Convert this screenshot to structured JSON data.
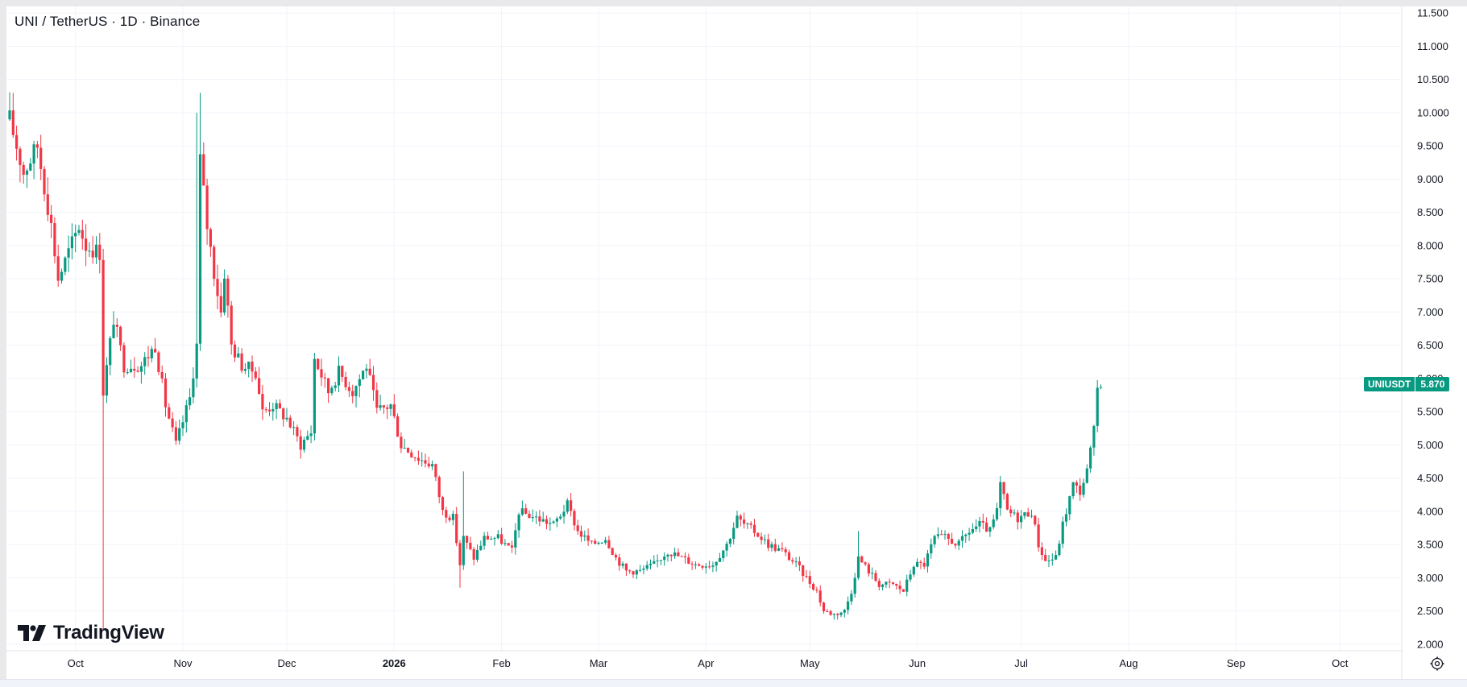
{
  "header": {
    "symbol_title": "UNI / TetherUS · 1D · Binance"
  },
  "branding": {
    "logo_text": "TradingView"
  },
  "price_label": {
    "symbol": "UNIUSDT",
    "value": "5.870"
  },
  "colors": {
    "up": "#089981",
    "down": "#f23645",
    "grid": "#f0f3fa",
    "text": "#131722"
  },
  "icons": {
    "settings": "gear-icon",
    "logo": "tradingview-logo-icon"
  },
  "chart_data": {
    "type": "candlestick",
    "y_ticks": [
      "11.500",
      "11.000",
      "10.500",
      "10.000",
      "9.500",
      "9.000",
      "8.500",
      "8.000",
      "7.500",
      "7.000",
      "6.500",
      "6.000",
      "5.500",
      "5.000",
      "4.500",
      "4.000",
      "3.500",
      "3.000",
      "2.500",
      "2.000"
    ],
    "x_ticks": [
      "Oct",
      "Nov",
      "Dec",
      "2026",
      "Feb",
      "Mar",
      "Apr",
      "May",
      "Jun",
      "Jul",
      "Aug",
      "Sep",
      "Oct"
    ],
    "ylim": [
      1.9,
      11.6
    ],
    "grid": true,
    "anchors": [
      {
        "day": 0,
        "p": 9.9
      },
      {
        "day": 4,
        "p": 9.1
      },
      {
        "day": 8,
        "p": 9.5
      },
      {
        "day": 12,
        "p": 8.3
      },
      {
        "day": 14,
        "p": 7.5
      },
      {
        "day": 20,
        "p": 8.3
      },
      {
        "day": 22,
        "p": 8.0
      },
      {
        "day": 26,
        "p": 7.9
      },
      {
        "day": 27,
        "p": 5.8
      },
      {
        "day": 30,
        "p": 6.9
      },
      {
        "day": 33,
        "p": 6.2
      },
      {
        "day": 38,
        "p": 6.2
      },
      {
        "day": 42,
        "p": 6.5
      },
      {
        "day": 45,
        "p": 5.6
      },
      {
        "day": 48,
        "p": 5.0
      },
      {
        "day": 52,
        "p": 5.7
      },
      {
        "day": 54,
        "p": 6.5
      },
      {
        "day": 55,
        "p": 9.3
      },
      {
        "day": 57,
        "p": 8.3
      },
      {
        "day": 59,
        "p": 7.6
      },
      {
        "day": 61,
        "p": 7.0
      },
      {
        "day": 62,
        "p": 7.6
      },
      {
        "day": 64,
        "p": 6.5
      },
      {
        "day": 67,
        "p": 6.2
      },
      {
        "day": 71,
        "p": 6.1
      },
      {
        "day": 73,
        "p": 5.5
      },
      {
        "day": 76,
        "p": 5.6
      },
      {
        "day": 80,
        "p": 5.4
      },
      {
        "day": 84,
        "p": 5.0
      },
      {
        "day": 87,
        "p": 5.2
      },
      {
        "day": 88,
        "p": 6.3
      },
      {
        "day": 92,
        "p": 5.8
      },
      {
        "day": 95,
        "p": 6.1
      },
      {
        "day": 99,
        "p": 5.8
      },
      {
        "day": 103,
        "p": 6.2
      },
      {
        "day": 106,
        "p": 5.5
      },
      {
        "day": 110,
        "p": 5.6
      },
      {
        "day": 113,
        "p": 5.0
      },
      {
        "day": 118,
        "p": 4.8
      },
      {
        "day": 122,
        "p": 4.7
      },
      {
        "day": 125,
        "p": 4.0
      },
      {
        "day": 128,
        "p": 3.9
      },
      {
        "day": 130,
        "p": 3.2
      },
      {
        "day": 131,
        "p": 3.6
      },
      {
        "day": 134,
        "p": 3.3
      },
      {
        "day": 137,
        "p": 3.6
      },
      {
        "day": 141,
        "p": 3.6
      },
      {
        "day": 145,
        "p": 3.4
      },
      {
        "day": 147,
        "p": 4.0
      },
      {
        "day": 152,
        "p": 3.9
      },
      {
        "day": 157,
        "p": 3.8
      },
      {
        "day": 161,
        "p": 4.1
      },
      {
        "day": 164,
        "p": 3.7
      },
      {
        "day": 168,
        "p": 3.5
      },
      {
        "day": 172,
        "p": 3.6
      },
      {
        "day": 175,
        "p": 3.3
      },
      {
        "day": 178,
        "p": 3.1
      },
      {
        "day": 182,
        "p": 3.1
      },
      {
        "day": 186,
        "p": 3.2
      },
      {
        "day": 190,
        "p": 3.4
      },
      {
        "day": 194,
        "p": 3.3
      },
      {
        "day": 198,
        "p": 3.2
      },
      {
        "day": 203,
        "p": 3.2
      },
      {
        "day": 207,
        "p": 3.5
      },
      {
        "day": 210,
        "p": 3.9
      },
      {
        "day": 212,
        "p": 3.8
      },
      {
        "day": 215,
        "p": 3.7
      },
      {
        "day": 219,
        "p": 3.5
      },
      {
        "day": 223,
        "p": 3.4
      },
      {
        "day": 227,
        "p": 3.2
      },
      {
        "day": 230,
        "p": 3.0
      },
      {
        "day": 233,
        "p": 2.8
      },
      {
        "day": 235,
        "p": 2.5
      },
      {
        "day": 238,
        "p": 2.45
      },
      {
        "day": 241,
        "p": 2.5
      },
      {
        "day": 243,
        "p": 2.8
      },
      {
        "day": 245,
        "p": 3.3
      },
      {
        "day": 248,
        "p": 3.1
      },
      {
        "day": 251,
        "p": 2.9
      },
      {
        "day": 255,
        "p": 2.9
      },
      {
        "day": 258,
        "p": 2.8
      },
      {
        "day": 261,
        "p": 3.2
      },
      {
        "day": 264,
        "p": 3.2
      },
      {
        "day": 267,
        "p": 3.6
      },
      {
        "day": 270,
        "p": 3.6
      },
      {
        "day": 274,
        "p": 3.5
      },
      {
        "day": 277,
        "p": 3.7
      },
      {
        "day": 280,
        "p": 3.8
      },
      {
        "day": 283,
        "p": 3.7
      },
      {
        "day": 285,
        "p": 4.0
      },
      {
        "day": 286,
        "p": 4.4
      },
      {
        "day": 288,
        "p": 4.0
      },
      {
        "day": 291,
        "p": 3.9
      },
      {
        "day": 295,
        "p": 4.0
      },
      {
        "day": 297,
        "p": 3.5
      },
      {
        "day": 299,
        "p": 3.25
      },
      {
        "day": 302,
        "p": 3.3
      },
      {
        "day": 304,
        "p": 3.8
      },
      {
        "day": 307,
        "p": 4.4
      },
      {
        "day": 309,
        "p": 4.3
      },
      {
        "day": 311,
        "p": 4.6
      },
      {
        "day": 313,
        "p": 5.2
      },
      {
        "day": 314,
        "p": 5.85
      },
      {
        "day": 315,
        "p": 5.87
      }
    ]
  }
}
